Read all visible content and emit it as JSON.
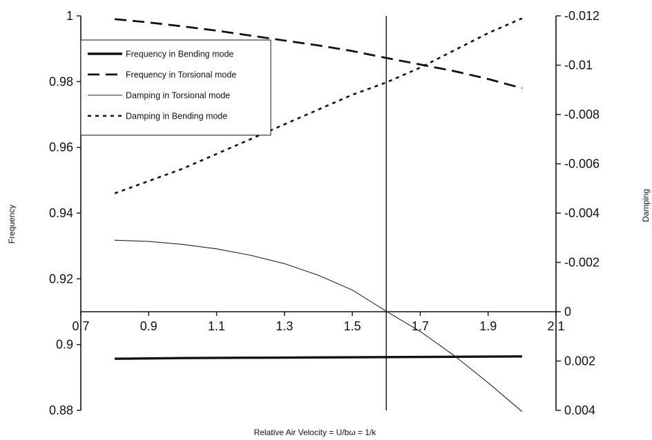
{
  "chart_data": {
    "type": "line",
    "xlabel": "Relative Air Velocity = U/bω = 1/k",
    "ylabel_left": "Frequency",
    "ylabel_right": "Damping",
    "xlim": [
      0.7,
      2.1
    ],
    "ylim_left": [
      0.88,
      1.0
    ],
    "ylim_right": [
      0.004,
      -0.012
    ],
    "right_axis_reversed": true,
    "x_ticks": [
      {
        "value": 0.7,
        "label": "0.7"
      },
      {
        "value": 0.9,
        "label": "0.9"
      },
      {
        "value": 1.1,
        "label": "1.1"
      },
      {
        "value": 1.3,
        "label": "1.3"
      },
      {
        "value": 1.5,
        "label": "1.5"
      },
      {
        "value": 1.7,
        "label": "1.7"
      },
      {
        "value": 1.9,
        "label": "1.9"
      },
      {
        "value": 2.1,
        "label": "2.1"
      }
    ],
    "left_ticks": [
      {
        "value": 1.0,
        "label": "1"
      },
      {
        "value": 0.98,
        "label": "0.98"
      },
      {
        "value": 0.96,
        "label": "0.96"
      },
      {
        "value": 0.94,
        "label": "0.94"
      },
      {
        "value": 0.92,
        "label": "0.92"
      },
      {
        "value": 0.9,
        "label": "0.9"
      },
      {
        "value": 0.88,
        "label": "0.88"
      }
    ],
    "right_ticks": [
      {
        "value": -0.012,
        "label": "-0.012"
      },
      {
        "value": -0.01,
        "label": "-0.01"
      },
      {
        "value": -0.008,
        "label": "-0.008"
      },
      {
        "value": -0.006,
        "label": "-0.006"
      },
      {
        "value": -0.004,
        "label": "-0.004"
      },
      {
        "value": -0.002,
        "label": "-0.002"
      },
      {
        "value": 0,
        "label": "0"
      },
      {
        "value": 0.002,
        "label": "0.002"
      },
      {
        "value": 0.004,
        "label": "0.004"
      }
    ],
    "reference_vertical_x": 1.6,
    "grid": false,
    "legend_position": "top-left",
    "series": [
      {
        "name": "Frequency in Bending mode",
        "axis": "left",
        "style": "solid-thick",
        "x": [
          0.8,
          1.0,
          1.2,
          1.4,
          1.6,
          1.8,
          2.0
        ],
        "y": [
          0.8957,
          0.8959,
          0.896,
          0.8961,
          0.8962,
          0.8963,
          0.8964
        ]
      },
      {
        "name": "Frequency in Torsional mode",
        "axis": "left",
        "style": "long-dash",
        "x": [
          0.8,
          0.9,
          1.0,
          1.1,
          1.2,
          1.3,
          1.4,
          1.5,
          1.6,
          1.7,
          1.8,
          1.9,
          2.0
        ],
        "y": [
          0.999,
          0.998,
          0.9968,
          0.9955,
          0.994,
          0.9925,
          0.991,
          0.9893,
          0.9872,
          0.9852,
          0.9832,
          0.9808,
          0.978
        ]
      },
      {
        "name": "Damping in Torsional mode",
        "axis": "right",
        "style": "thin-solid",
        "x": [
          0.8,
          0.9,
          1.0,
          1.1,
          1.2,
          1.3,
          1.4,
          1.5,
          1.6,
          1.7,
          1.8,
          1.9,
          2.0
        ],
        "y": [
          -0.0029,
          -0.00285,
          -0.00273,
          -0.00255,
          -0.00229,
          -0.00195,
          -0.00148,
          -0.00088,
          -2e-05,
          0.0008,
          0.00178,
          0.00288,
          0.00405
        ]
      },
      {
        "name": "Damping in Bending mode",
        "axis": "right",
        "style": "dotted",
        "x": [
          0.8,
          0.9,
          1.0,
          1.1,
          1.2,
          1.3,
          1.4,
          1.5,
          1.6,
          1.7,
          1.8,
          1.9,
          2.0
        ],
        "y": [
          -0.0048,
          -0.0053,
          -0.0058,
          -0.0064,
          -0.007,
          -0.0076,
          -0.0082,
          -0.0088,
          -0.0093,
          -0.0099,
          -0.0106,
          -0.0113,
          -0.0119
        ]
      }
    ]
  }
}
